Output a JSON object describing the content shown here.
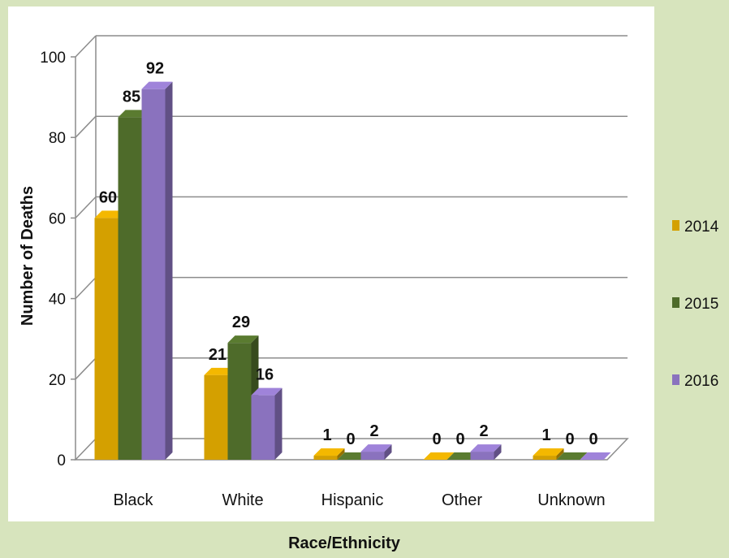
{
  "chart_data": {
    "type": "bar",
    "title": "",
    "xlabel": "Race/Ethnicity",
    "ylabel": "Number of Deaths",
    "categories": [
      "Black",
      "White",
      "Hispanic",
      "Other",
      "Unknown"
    ],
    "series": [
      {
        "name": "2014",
        "values": [
          60,
          21,
          1,
          0,
          1
        ],
        "color": "#d4a000"
      },
      {
        "name": "2015",
        "values": [
          85,
          29,
          0,
          0,
          0
        ],
        "color": "#4e6b2a"
      },
      {
        "name": "2016",
        "values": [
          92,
          16,
          2,
          2,
          0
        ],
        "color": "#8a72be"
      }
    ],
    "yticks": [
      "0",
      "20",
      "40",
      "60",
      "80",
      "100"
    ],
    "ylim": [
      0,
      100
    ],
    "grid": true,
    "legend_position": "right",
    "style": "3d-clustered-column"
  },
  "colors": {
    "page_background": "#d7e4bd",
    "plot_background": "#ffffff",
    "gridline": "#8c8c8c"
  }
}
